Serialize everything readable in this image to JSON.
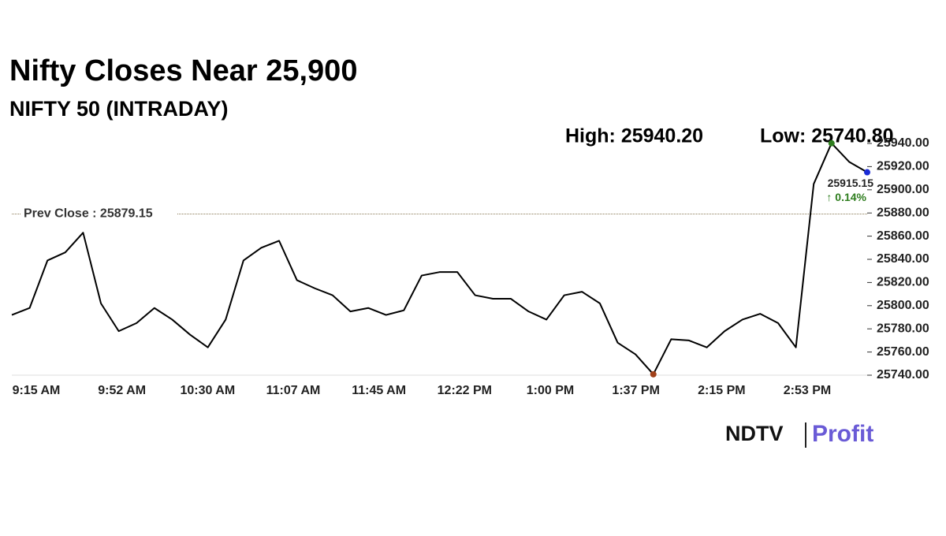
{
  "chart_data": {
    "type": "line",
    "title": "Nifty Closes Near 25,900",
    "subtitle": "NIFTY 50 (INTRADAY)",
    "high": {
      "value": 25940.2,
      "label": "High: 25940.20"
    },
    "low": {
      "value": 25740.8,
      "label": "Low: 25740.80"
    },
    "prev_close": {
      "value": 25879.15,
      "label": "Prev Close : 25879.15"
    },
    "change": {
      "value": 0.14,
      "label": "↑ 0.14%"
    },
    "brand": [
      "NDTV",
      "Profit"
    ],
    "categories": [
      "9:15 AM",
      null,
      null,
      null,
      null,
      "9:52 AM",
      null,
      null,
      null,
      null,
      "10:30 AM",
      null,
      null,
      null,
      null,
      "11:07 AM",
      null,
      null,
      null,
      null,
      "11:45 AM",
      null,
      null,
      null,
      null,
      "12:22 PM",
      null,
      null,
      null,
      null,
      "1:00 PM",
      null,
      null,
      null,
      null,
      "1:37 PM",
      null,
      null,
      null,
      null,
      "2:15 PM",
      null,
      null,
      null,
      null,
      "2:53 PM",
      null,
      null,
      null
    ],
    "values": [
      25792,
      25798,
      25839,
      25846,
      25863,
      25802,
      25778,
      25785,
      25798,
      25788,
      25775,
      25764,
      25788,
      25839,
      25850,
      25856,
      25822,
      25815,
      25809,
      25795,
      25798,
      25792,
      25796,
      25826,
      25829,
      25829,
      25809,
      25806,
      25806,
      25795,
      25788,
      25809,
      25812,
      25802,
      25768,
      25758,
      25740.8,
      25771,
      25770,
      25764,
      25778,
      25788,
      25793,
      25785,
      25764,
      25905,
      25940.2,
      25924,
      25915.15
    ],
    "value_labels": [
      null,
      null,
      null,
      null,
      null,
      null,
      null,
      null,
      null,
      null,
      null,
      null,
      null,
      null,
      null,
      null,
      null,
      null,
      null,
      null,
      null,
      null,
      null,
      null,
      null,
      null,
      null,
      null,
      null,
      null,
      null,
      null,
      null,
      null,
      null,
      null,
      null,
      null,
      null,
      null,
      null,
      null,
      null,
      null,
      null,
      null,
      null,
      null,
      "25915.15"
    ],
    "color": "#000000",
    "ylim": [
      25740,
      25940
    ],
    "yticks": [
      {
        "value": 25740,
        "label": "25740.00"
      },
      {
        "value": 25760,
        "label": "25760.00"
      },
      {
        "value": 25780,
        "label": "25780.00"
      },
      {
        "value": 25800,
        "label": "25800.00"
      },
      {
        "value": 25820,
        "label": "25820.00"
      },
      {
        "value": 25840,
        "label": "25840.00"
      },
      {
        "value": 25860,
        "label": "25860.00"
      },
      {
        "value": 25880,
        "label": "25880.00"
      },
      {
        "value": 25900,
        "label": "25900.00"
      },
      {
        "value": 25920,
        "label": "25920.00"
      },
      {
        "value": 25940,
        "label": "25940.00"
      }
    ]
  }
}
